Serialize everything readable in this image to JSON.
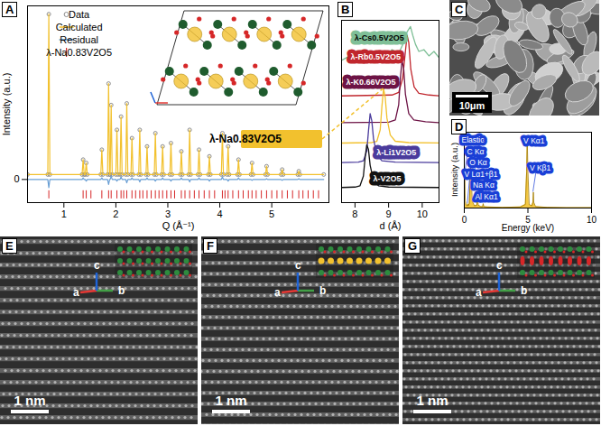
{
  "chart_data": [
    {
      "panel": "A",
      "type": "line",
      "xlabel": "Q (Å⁻¹)",
      "ylabel": "Intensity (a.u.)",
      "xlim": [
        0.3,
        6.1
      ],
      "xticks": [
        1,
        2,
        3,
        4,
        5
      ],
      "ylim": [
        -0.14,
        1.05
      ],
      "yticks": [
        0
      ],
      "legend": "top-left",
      "x": [
        0.3,
        0.69,
        0.71,
        0.73,
        1.35,
        1.37,
        1.39,
        1.41,
        1.43,
        1.45,
        1.71,
        1.73,
        1.75,
        1.84,
        1.86,
        1.88,
        1.89,
        1.91,
        1.93,
        2.0,
        2.02,
        2.04,
        2.08,
        2.1,
        2.12,
        2.19,
        2.21,
        2.23,
        2.29,
        2.31,
        2.33,
        2.44,
        2.46,
        2.48,
        2.58,
        2.6,
        2.62,
        2.74,
        2.76,
        2.78,
        2.88,
        2.9,
        2.92,
        3.04,
        3.06,
        3.08,
        3.24,
        3.26,
        3.28,
        3.4,
        3.42,
        3.44,
        3.58,
        3.6,
        3.62,
        3.78,
        3.8,
        3.82,
        4.03,
        4.05,
        4.07,
        4.14,
        4.16,
        4.18,
        4.34,
        4.36,
        4.38,
        4.6,
        4.62,
        4.64,
        4.88,
        4.9,
        4.92,
        5.18,
        5.2,
        5.22,
        5.5,
        5.52,
        5.54,
        6.0
      ],
      "series": [
        {
          "name": "Data",
          "type": "scatter",
          "marker": "circle",
          "color": "#8c8c8c",
          "values": [
            0.03,
            0.03,
            1.0,
            0.03,
            0.03,
            0.12,
            0.03,
            0.03,
            0.1,
            0.03,
            0.03,
            0.18,
            0.03,
            0.03,
            0.58,
            0.03,
            0.03,
            0.45,
            0.03,
            0.03,
            0.3,
            0.03,
            0.03,
            0.38,
            0.03,
            0.03,
            0.46,
            0.03,
            0.03,
            0.25,
            0.03,
            0.03,
            0.3,
            0.03,
            0.03,
            0.2,
            0.03,
            0.03,
            0.28,
            0.03,
            0.03,
            0.2,
            0.03,
            0.03,
            0.22,
            0.03,
            0.03,
            0.17,
            0.03,
            0.03,
            0.3,
            0.03,
            0.03,
            0.18,
            0.03,
            0.03,
            0.14,
            0.03,
            0.03,
            0.28,
            0.03,
            0.03,
            0.2,
            0.03,
            0.03,
            0.12,
            0.03,
            0.03,
            0.1,
            0.03,
            0.03,
            0.08,
            0.03,
            0.03,
            0.06,
            0.03,
            0.03,
            0.05,
            0.03,
            0.03
          ]
        },
        {
          "name": "Calculated",
          "type": "line",
          "color": "#f2c12e",
          "values": [
            0.03,
            0.03,
            1.0,
            0.03,
            0.03,
            0.12,
            0.03,
            0.03,
            0.1,
            0.03,
            0.03,
            0.18,
            0.03,
            0.03,
            0.58,
            0.03,
            0.03,
            0.45,
            0.03,
            0.03,
            0.3,
            0.03,
            0.03,
            0.38,
            0.03,
            0.03,
            0.46,
            0.03,
            0.03,
            0.25,
            0.03,
            0.03,
            0.3,
            0.03,
            0.03,
            0.2,
            0.03,
            0.03,
            0.28,
            0.03,
            0.03,
            0.2,
            0.03,
            0.03,
            0.22,
            0.03,
            0.03,
            0.17,
            0.03,
            0.03,
            0.3,
            0.03,
            0.03,
            0.18,
            0.03,
            0.03,
            0.14,
            0.03,
            0.03,
            0.28,
            0.03,
            0.03,
            0.2,
            0.03,
            0.03,
            0.12,
            0.03,
            0.03,
            0.1,
            0.03,
            0.03,
            0.08,
            0.03,
            0.03,
            0.06,
            0.03,
            0.03,
            0.05,
            0.03,
            0.03
          ]
        },
        {
          "name": "Residual",
          "type": "line",
          "color": "#6a9fd4",
          "values": [
            0,
            0,
            -0.05,
            0,
            0,
            0.01,
            0,
            0,
            -0.01,
            0,
            0,
            0.01,
            0,
            0,
            -0.03,
            0,
            0,
            0.02,
            0,
            0,
            -0.01,
            0,
            0,
            0.015,
            0,
            0,
            -0.02,
            0,
            0,
            0.01,
            0,
            0,
            -0.015,
            0,
            0,
            0.01,
            0,
            0,
            -0.01,
            0,
            0,
            0.01,
            0,
            0,
            -0.01,
            0,
            0,
            0.01,
            0,
            0,
            -0.015,
            0,
            0,
            0.01,
            0,
            0,
            -0.01,
            0,
            0,
            0.015,
            0,
            0,
            -0.01,
            0,
            0,
            0.01,
            0,
            0,
            -0.005,
            0,
            0,
            0.005,
            0,
            0,
            -0.005,
            0,
            0,
            0.005,
            0,
            0
          ]
        },
        {
          "name": "λ-Na0.83V2O5",
          "type": "scatter",
          "marker": "vline",
          "color": "#d62728",
          "x": [
            0.71,
            1.37,
            1.43,
            1.52,
            1.73,
            1.86,
            1.91,
            2.02,
            2.1,
            2.15,
            2.21,
            2.31,
            2.38,
            2.46,
            2.52,
            2.6,
            2.68,
            2.76,
            2.83,
            2.9,
            2.98,
            3.06,
            3.13,
            3.26,
            3.33,
            3.42,
            3.51,
            3.6,
            3.7,
            3.8,
            3.9,
            4.05,
            4.1,
            4.16,
            4.25,
            4.36,
            4.45,
            4.55,
            4.62,
            4.7,
            4.8,
            4.9,
            5.0,
            5.1,
            5.2,
            5.3,
            5.4,
            5.52,
            5.6,
            5.7,
            5.8,
            5.9
          ],
          "values": [
            -0.09,
            -0.09,
            -0.09,
            -0.09,
            -0.09,
            -0.09,
            -0.09,
            -0.09,
            -0.09,
            -0.09,
            -0.09,
            -0.09,
            -0.09,
            -0.09,
            -0.09,
            -0.09,
            -0.09,
            -0.09,
            -0.09,
            -0.09,
            -0.09,
            -0.09,
            -0.09,
            -0.09,
            -0.09,
            -0.09,
            -0.09,
            -0.09,
            -0.09,
            -0.09,
            -0.09,
            -0.09,
            -0.09,
            -0.09,
            -0.09,
            -0.09,
            -0.09,
            -0.09,
            -0.09,
            -0.09,
            -0.09,
            -0.09,
            -0.09,
            -0.09,
            -0.09,
            -0.09,
            -0.09,
            -0.09,
            -0.09,
            -0.09,
            -0.09,
            -0.09
          ]
        }
      ],
      "annotations": [
        "λ-Na0.83V2O5"
      ]
    },
    {
      "panel": "B",
      "type": "line",
      "xlabel": "d (Å)",
      "xlim": [
        7.6,
        10.5
      ],
      "xticks": [
        8,
        9,
        10
      ],
      "ylim": [
        0,
        205
      ],
      "tick_labels": "x",
      "series": [
        {
          "name": "λ-Cs0.5V2O5",
          "color": "#7fbf97",
          "x": [
            7.6,
            7.9,
            8.1,
            8.3,
            8.5,
            8.7,
            8.9,
            9.1,
            9.3,
            9.45,
            9.55,
            9.65,
            9.72,
            9.8,
            9.9,
            10.05,
            10.2,
            10.35,
            10.5
          ],
          "values": [
            160,
            166,
            158,
            168,
            161,
            170,
            163,
            172,
            168,
            180,
            192,
            198,
            188,
            178,
            170,
            172,
            165,
            170,
            163
          ]
        },
        {
          "name": "λ-Rb0.5V2O5",
          "color": "#c0262d",
          "x": [
            7.6,
            9.1,
            9.3,
            9.42,
            9.5,
            9.55,
            9.6,
            9.66,
            9.76,
            9.9,
            10.2,
            10.5
          ],
          "values": [
            120,
            121,
            124,
            140,
            170,
            188,
            180,
            150,
            130,
            123,
            121,
            120
          ]
        },
        {
          "name": "λ-K0.66V2O5",
          "color": "#6d1345",
          "x": [
            7.6,
            9.0,
            9.2,
            9.3,
            9.35,
            9.4,
            9.45,
            9.5,
            9.6,
            9.75,
            10.1,
            10.5
          ],
          "values": [
            90,
            90.5,
            93,
            110,
            140,
            160,
            150,
            122,
            100,
            93,
            91,
            90
          ]
        },
        {
          "name": "λ-Na0.83V2O5",
          "color": "#f2c12e",
          "x": [
            7.6,
            8.5,
            8.65,
            8.75,
            8.8,
            8.85,
            8.9,
            8.95,
            9.05,
            9.2,
            9.6,
            10.5
          ],
          "values": [
            67,
            67.5,
            69,
            82,
            108,
            128,
            118,
            95,
            76,
            69,
            67.5,
            67
          ]
        },
        {
          "name": "λ-Li1V2O5",
          "color": "#4a3b9c",
          "x": [
            7.6,
            8.1,
            8.25,
            8.35,
            8.4,
            8.45,
            8.5,
            8.55,
            8.65,
            8.8,
            9.2,
            10.5
          ],
          "values": [
            45,
            45.5,
            47,
            58,
            80,
            100,
            92,
            72,
            54,
            47,
            45.5,
            45
          ]
        },
        {
          "name": "λ-V2O5",
          "color": "#111111",
          "x": [
            7.6,
            8.0,
            8.15,
            8.25,
            8.3,
            8.35,
            8.4,
            8.45,
            8.55,
            8.7,
            9.0,
            10.5
          ],
          "values": [
            17,
            17.5,
            19,
            30,
            50,
            65,
            60,
            42,
            25,
            19,
            17.5,
            17
          ]
        }
      ]
    },
    {
      "panel": "D",
      "type": "area",
      "xlabel": "Energy (keV)",
      "ylabel": "Intensity (a.u.)",
      "xlim": [
        0,
        10
      ],
      "xticks": [
        0,
        5,
        10
      ],
      "ylim": [
        0,
        1.05
      ],
      "tick_labels": "x",
      "color": "#f2c12e",
      "x": [
        0,
        0.03,
        0.08,
        0.15,
        0.25,
        0.28,
        0.31,
        0.4,
        0.47,
        0.51,
        0.55,
        0.62,
        0.8,
        0.98,
        1.04,
        1.1,
        1.3,
        1.45,
        1.49,
        1.53,
        1.8,
        3.0,
        4.4,
        4.8,
        4.9,
        4.95,
        5.0,
        5.1,
        5.3,
        5.4,
        5.43,
        5.46,
        5.6,
        6.5,
        8,
        10
      ],
      "values": [
        0.05,
        0.42,
        0.1,
        0.04,
        0.03,
        0.06,
        0.03,
        0.06,
        0.45,
        0.7,
        0.45,
        0.1,
        0.03,
        0.04,
        0.14,
        0.04,
        0.02,
        0.02,
        0.06,
        0.02,
        0.015,
        0.01,
        0.015,
        0.05,
        0.5,
        0.95,
        0.5,
        0.05,
        0.03,
        0.08,
        0.22,
        0.08,
        0.02,
        0.01,
        0.005,
        0.005
      ],
      "annotations": [
        {
          "text": "Elastic",
          "x": 0.03
        },
        {
          "text": "C Kα",
          "x": 0.28
        },
        {
          "text": "O Kα",
          "x": 0.52
        },
        {
          "text": "V Lα1+β1",
          "x": 0.51
        },
        {
          "text": "Na Kα",
          "x": 1.04
        },
        {
          "text": "Al Kα1",
          "x": 1.49
        },
        {
          "text": "V Kα1",
          "x": 4.95
        },
        {
          "text": "V Kβ1",
          "x": 5.43
        }
      ]
    }
  ],
  "images": [
    {
      "panel": "C",
      "scale_bar": "10μm"
    },
    {
      "panel": "E",
      "scale_bar": "1 nm",
      "axes": [
        "a",
        "b",
        "c"
      ]
    },
    {
      "panel": "F",
      "scale_bar": "1 nm",
      "axes": [
        "a",
        "b",
        "c"
      ]
    },
    {
      "panel": "G",
      "scale_bar": "1 nm",
      "axes": [
        "a",
        "b",
        "c"
      ]
    }
  ]
}
